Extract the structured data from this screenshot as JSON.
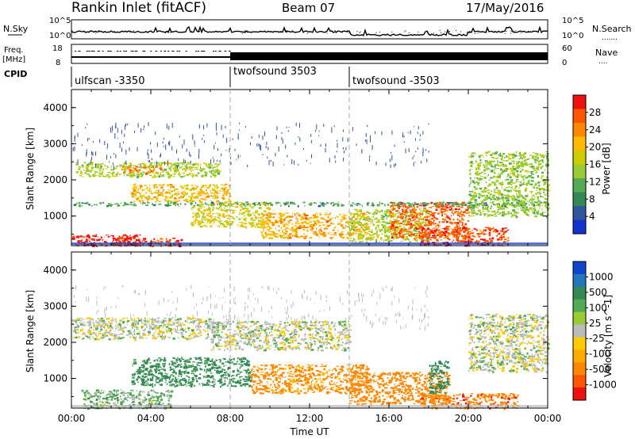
{
  "header": {
    "station": "Rankin Inlet (fitACF)",
    "beam": "Beam 07",
    "date": "17/May/2016"
  },
  "noise_panel": {
    "left_label": "N.Sky",
    "right_label": "N.Search",
    "ticks_left": [
      "10^5",
      "10^0"
    ],
    "ticks_right": [
      "10^5",
      "10^0"
    ],
    "legend_dots": "......."
  },
  "freq_panel": {
    "left_label_1": "Freq.",
    "left_label_2": "[MHz]",
    "right_label": "Nave",
    "ticks_left": [
      "18",
      "8"
    ],
    "ticks_right": [
      "60",
      "0"
    ],
    "legend_dots": "...."
  },
  "cpid_panel": {
    "label": "CPID",
    "segments": [
      {
        "name": "ulfscan -3350",
        "start_hour": 0
      },
      {
        "name": "twofsound 3503",
        "start_hour": 8
      },
      {
        "name": "twofsound -3503",
        "start_hour": 14
      }
    ]
  },
  "time_axis": {
    "label": "Time UT",
    "tick_labels": [
      "00:00",
      "04:00",
      "08:00",
      "12:00",
      "16:00",
      "20:00",
      "00:00"
    ]
  },
  "range_axis": {
    "label": "Slant Range [km]",
    "tick_labels": [
      "4000",
      "3000",
      "2000",
      "1000"
    ]
  },
  "power_colorbar": {
    "label": "Power [dB]",
    "tick_labels": [
      "28",
      "24",
      "20",
      "16",
      "12",
      "8",
      "4"
    ],
    "colors": [
      "#ee1111",
      "#ff5500",
      "#ff8800",
      "#ffbb00",
      "#cccc00",
      "#99cc33",
      "#55aa55",
      "#338855",
      "#335599",
      "#1133cc"
    ]
  },
  "velocity_colorbar": {
    "label": "Velocity [m s^-1]",
    "tick_labels": [
      "1000",
      "500",
      "100",
      "25",
      "-25",
      "-100",
      "-500",
      "-1000"
    ],
    "colors": [
      "#1144cc",
      "#2277bb",
      "#338855",
      "#55aa55",
      "#99cc33",
      "#bbbbbb",
      "#ffcc00",
      "#ffaa00",
      "#ff8800",
      "#ff5500",
      "#ee1111"
    ]
  },
  "chart_data": [
    {
      "type": "heatmap",
      "title": "Power",
      "xlabel": "Time UT",
      "ylabel": "Slant Range [km]",
      "xlim": [
        0,
        24
      ],
      "ylim": [
        180,
        4500
      ],
      "colorbar_label": "Power [dB]",
      "colorbar_ticks": [
        28,
        24,
        20,
        16,
        12,
        8,
        4
      ],
      "bands": [
        {
          "t_start": 0.0,
          "t_end": 3.5,
          "r_low": 180,
          "r_high": 500,
          "value_db": 28
        },
        {
          "t_start": 2.0,
          "t_end": 5.5,
          "r_low": 180,
          "r_high": 400,
          "value_db": 26
        },
        {
          "t_start": 0.2,
          "t_end": 7.5,
          "r_low": 2100,
          "r_high": 2500,
          "value_db": 14
        },
        {
          "t_start": 2.5,
          "t_end": 4.5,
          "r_low": 2200,
          "r_high": 2400,
          "value_db": 22
        },
        {
          "t_start": 3.0,
          "t_end": 8.0,
          "r_low": 1400,
          "r_high": 1900,
          "value_db": 18
        },
        {
          "t_start": 6.0,
          "t_end": 10.0,
          "r_low": 700,
          "r_high": 1400,
          "value_db": 16
        },
        {
          "t_start": 9.5,
          "t_end": 15.0,
          "r_low": 400,
          "r_high": 1100,
          "value_db": 20
        },
        {
          "t_start": 14.0,
          "t_end": 18.0,
          "r_low": 300,
          "r_high": 1200,
          "value_db": 14
        },
        {
          "t_start": 16.0,
          "t_end": 20.0,
          "r_low": 400,
          "r_high": 1400,
          "value_db": 24
        },
        {
          "t_start": 17.5,
          "t_end": 22.0,
          "r_low": 200,
          "r_high": 700,
          "value_db": 26
        },
        {
          "t_start": 20.0,
          "t_end": 24.0,
          "r_low": 1000,
          "r_high": 2800,
          "value_db": 12
        },
        {
          "t_start": 0.0,
          "t_end": 24.0,
          "r_low": 1300,
          "r_high": 1400,
          "value_db": 8
        }
      ]
    },
    {
      "type": "heatmap",
      "title": "Velocity",
      "xlabel": "Time UT",
      "ylabel": "Slant Range [km]",
      "xlim": [
        0,
        24
      ],
      "ylim": [
        180,
        4500
      ],
      "colorbar_label": "Velocity [m s^-1]",
      "colorbar_ticks": [
        1000,
        500,
        100,
        25,
        -25,
        -100,
        -500,
        -1000
      ],
      "bands": [
        {
          "t_start": 0.0,
          "t_end": 7.0,
          "r_low": 2100,
          "r_high": 2700,
          "value_ms": 0
        },
        {
          "t_start": 7.0,
          "t_end": 14.0,
          "r_low": 1800,
          "r_high": 2600,
          "value_ms": 0
        },
        {
          "t_start": 0.5,
          "t_end": 5.0,
          "r_low": 180,
          "r_high": 700,
          "value_ms": 50
        },
        {
          "t_start": 3.0,
          "t_end": 9.0,
          "r_low": 800,
          "r_high": 1600,
          "value_ms": 150
        },
        {
          "t_start": 9.0,
          "t_end": 15.0,
          "r_low": 600,
          "r_high": 1400,
          "value_ms": -150
        },
        {
          "t_start": 14.0,
          "t_end": 19.0,
          "r_low": 300,
          "r_high": 1200,
          "value_ms": -400
        },
        {
          "t_start": 17.5,
          "t_end": 22.5,
          "r_low": 180,
          "r_high": 600,
          "value_ms": -450
        },
        {
          "t_start": 18.0,
          "t_end": 19.0,
          "r_low": 600,
          "r_high": 1500,
          "value_ms": 400
        },
        {
          "t_start": 20.0,
          "t_end": 24.0,
          "r_low": 1200,
          "r_high": 2800,
          "value_ms": 0
        }
      ]
    }
  ]
}
